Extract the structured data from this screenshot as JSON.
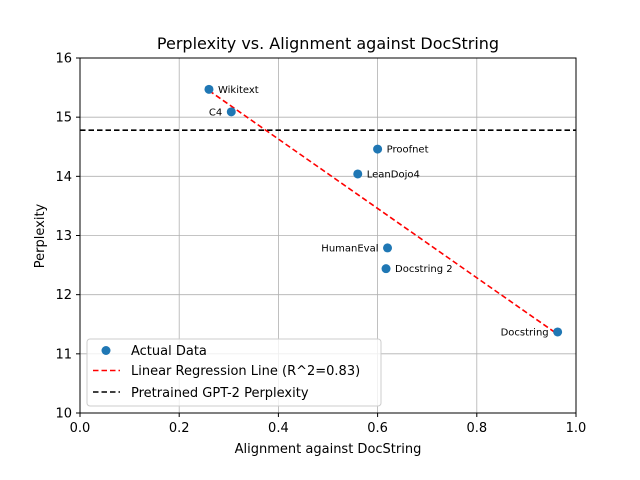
{
  "chart_data": {
    "type": "scatter",
    "title": "Perplexity vs. Alignment against DocString",
    "xlabel": "Alignment against DocString",
    "ylabel": "Perplexity",
    "xlim": [
      0.0,
      1.0
    ],
    "ylim": [
      10,
      16
    ],
    "grid": true,
    "x_ticks": [
      0.0,
      0.2,
      0.4,
      0.6,
      0.8,
      1.0
    ],
    "x_tick_labels": [
      "0.0",
      "0.2",
      "0.4",
      "0.6",
      "0.8",
      "1.0"
    ],
    "y_ticks": [
      10,
      11,
      12,
      13,
      14,
      15,
      16
    ],
    "y_tick_labels": [
      "10",
      "11",
      "12",
      "13",
      "14",
      "15",
      "16"
    ],
    "series": [
      {
        "name": "Actual Data",
        "color": "#1f77b4",
        "points": [
          {
            "label": "Wikitext",
            "x": 0.26,
            "y": 15.47,
            "label_side": "right"
          },
          {
            "label": "C4",
            "x": 0.305,
            "y": 15.09,
            "label_side": "left"
          },
          {
            "label": "Proofnet",
            "x": 0.6,
            "y": 14.46,
            "label_side": "right"
          },
          {
            "label": "LeanDojo4",
            "x": 0.56,
            "y": 14.04,
            "label_side": "right"
          },
          {
            "label": "HumanEval",
            "x": 0.62,
            "y": 12.79,
            "label_side": "left"
          },
          {
            "label": "Docstring 2",
            "x": 0.617,
            "y": 12.44,
            "label_side": "right"
          },
          {
            "label": "Docstring",
            "x": 0.963,
            "y": 11.37,
            "label_side": "left"
          }
        ]
      }
    ],
    "regression": {
      "name": "Linear Regression Line (R^2=0.83)",
      "color": "#ff0000",
      "x": [
        0.26,
        0.963
      ],
      "y": [
        15.45,
        11.33
      ]
    },
    "baseline": {
      "name": "Pretrained GPT-2 Perplexity",
      "color": "#000000",
      "y": 14.78
    },
    "legend": {
      "position": "lower-left",
      "entries": [
        "Actual Data",
        "Linear Regression Line (R^2=0.83)",
        "Pretrained GPT-2 Perplexity"
      ]
    }
  }
}
